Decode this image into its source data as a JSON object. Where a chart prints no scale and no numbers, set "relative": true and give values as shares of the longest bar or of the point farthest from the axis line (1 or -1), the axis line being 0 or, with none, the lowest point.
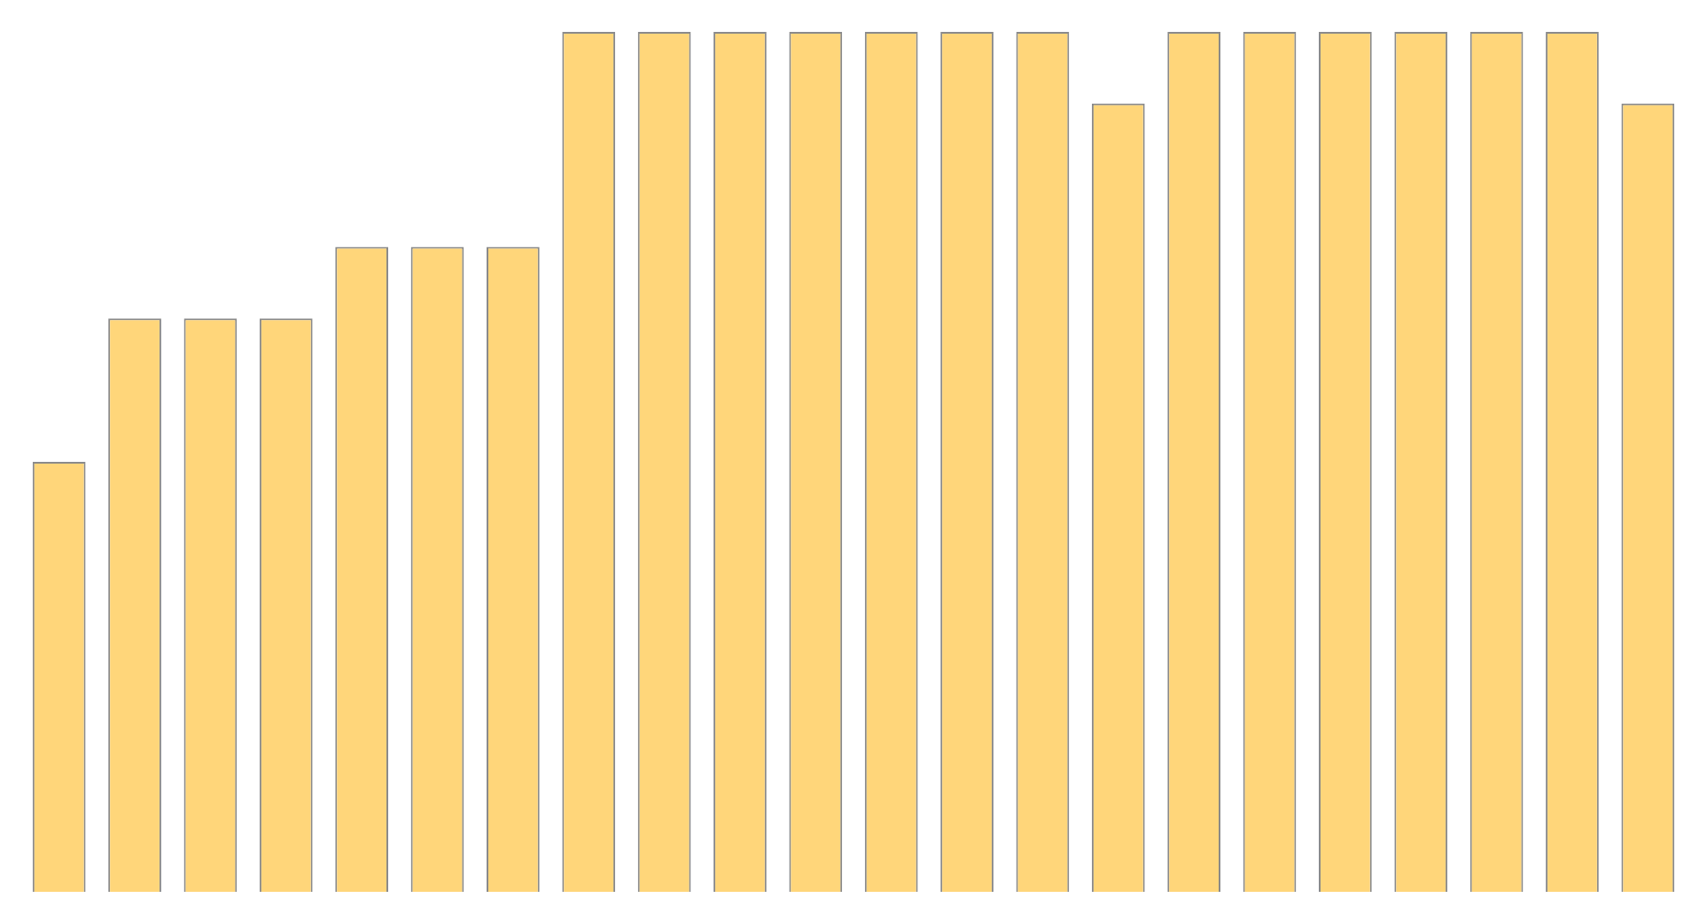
{
  "chart_data": {
    "type": "bar",
    "relative": true,
    "categories": [
      null,
      null,
      null,
      null,
      null,
      null,
      null,
      null,
      null,
      null,
      null,
      null,
      null,
      null,
      null,
      null,
      null,
      null,
      null,
      null,
      null,
      null
    ],
    "values": [
      0.5,
      0.6667,
      0.6667,
      0.6667,
      0.75,
      0.75,
      0.75,
      1,
      1,
      1,
      1,
      1,
      1,
      1,
      0.9167,
      1,
      1,
      1,
      1,
      1,
      1,
      0.9167
    ],
    "color": "#ffd67a",
    "legend": false
  }
}
